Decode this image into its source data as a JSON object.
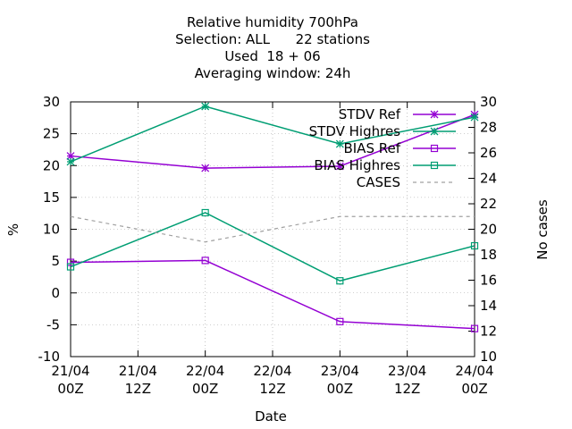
{
  "chart_data": {
    "type": "line",
    "title_lines": [
      "Relative humidity 700hPa",
      "Selection: ALL      22 stations",
      "Used  18 + 06",
      "Averaging window: 24h"
    ],
    "xlabel": "Date",
    "ylabel": "%",
    "y2label": "No cases",
    "x_ticks": [
      "21/04\n00Z",
      "21/04\n12Z",
      "22/04\n00Z",
      "22/04\n12Z",
      "23/04\n00Z",
      "23/04\n12Z",
      "24/04\n00Z"
    ],
    "x_positions": [
      0,
      2,
      4,
      6
    ],
    "ylim": [
      -10,
      30
    ],
    "y_ticks": [
      -10,
      -5,
      0,
      5,
      10,
      15,
      20,
      25,
      30
    ],
    "y2lim": [
      10,
      30
    ],
    "y2_ticks": [
      10,
      12,
      14,
      16,
      18,
      20,
      22,
      24,
      26,
      28,
      30
    ],
    "grid": true,
    "legend_position": "top-right",
    "series": [
      {
        "name": "STDV Ref",
        "axis": "y",
        "color": "#9400d3",
        "marker": "star",
        "dash": "solid",
        "values": [
          21.5,
          19.6,
          19.9,
          28.0
        ]
      },
      {
        "name": "STDV Highres",
        "axis": "y",
        "color": "#009e73",
        "marker": "star",
        "dash": "solid",
        "values": [
          20.6,
          29.3,
          23.4,
          27.6
        ]
      },
      {
        "name": "BIAS Ref",
        "axis": "y",
        "color": "#9400d3",
        "marker": "square",
        "dash": "solid",
        "values": [
          4.8,
          5.1,
          -4.5,
          -5.6
        ]
      },
      {
        "name": "BIAS Highres",
        "axis": "y",
        "color": "#009e73",
        "marker": "square",
        "dash": "solid",
        "values": [
          4.1,
          12.6,
          1.9,
          7.4
        ]
      },
      {
        "name": "CASES",
        "axis": "y2",
        "color": "#a0a0a0",
        "marker": "none",
        "dash": "dashed",
        "values": [
          21,
          19,
          21,
          21
        ]
      }
    ]
  }
}
